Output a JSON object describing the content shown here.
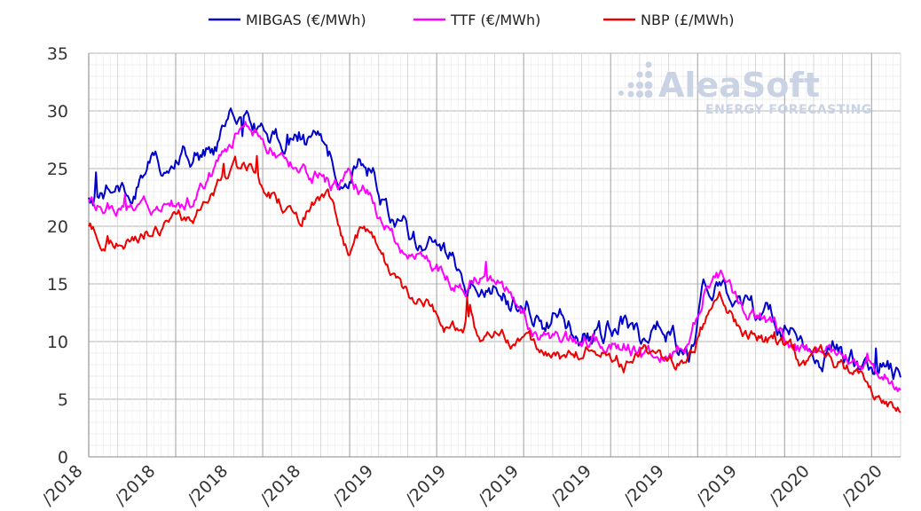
{
  "chart_data": {
    "type": "line",
    "ylim": [
      0,
      35
    ],
    "yticks": [
      "0",
      "5",
      "10",
      "15",
      "20",
      "25",
      "30",
      "35"
    ],
    "xticks": [
      "/2018",
      "/2018",
      "/2018",
      "/2018",
      "/2019",
      "/2019",
      "/2019",
      "/2019",
      "/2019",
      "/2019",
      "/2020",
      "/2020"
    ],
    "x_range": [
      "2018-01-01",
      "2020-04-15"
    ],
    "legend": "top",
    "grid": true,
    "series": [
      {
        "name": "MIBGAS (€/MWh)",
        "color": "#0000cc",
        "anchors": [
          [
            0,
            22.0
          ],
          [
            0.04,
            23.5
          ],
          [
            0.08,
            25.2
          ],
          [
            0.12,
            25.8
          ],
          [
            0.16,
            27.2
          ],
          [
            0.18,
            29.5
          ],
          [
            0.2,
            29.2
          ],
          [
            0.22,
            28.0
          ],
          [
            0.24,
            27.0
          ],
          [
            0.26,
            27.8
          ],
          [
            0.28,
            26.5
          ],
          [
            0.3,
            25.5
          ],
          [
            0.32,
            24.8
          ],
          [
            0.34,
            26.5
          ],
          [
            0.35,
            25.0
          ],
          [
            0.36,
            22.5
          ],
          [
            0.38,
            20.5
          ],
          [
            0.4,
            18.8
          ],
          [
            0.42,
            18.0
          ],
          [
            0.44,
            17.8
          ],
          [
            0.46,
            15.5
          ],
          [
            0.48,
            14.5
          ],
          [
            0.5,
            14.6
          ],
          [
            0.52,
            13.2
          ],
          [
            0.54,
            13.5
          ],
          [
            0.56,
            12.0
          ],
          [
            0.58,
            12.6
          ],
          [
            0.6,
            10.2
          ],
          [
            0.62,
            9.8
          ],
          [
            0.64,
            11.5
          ],
          [
            0.66,
            12.0
          ],
          [
            0.68,
            10.5
          ],
          [
            0.7,
            11.5
          ],
          [
            0.72,
            10.5
          ],
          [
            0.74,
            8.8
          ],
          [
            0.76,
            14.8
          ],
          [
            0.78,
            15.5
          ],
          [
            0.8,
            13.0
          ],
          [
            0.82,
            12.2
          ],
          [
            0.84,
            11.8
          ],
          [
            0.86,
            10.8
          ],
          [
            0.88,
            9.2
          ],
          [
            0.9,
            9.0
          ],
          [
            0.92,
            9.4
          ],
          [
            0.94,
            8.5
          ],
          [
            0.96,
            8.2
          ],
          [
            0.98,
            8.2
          ],
          [
            1.0,
            7.0
          ]
        ],
        "noise": 0.7
      },
      {
        "name": "TTF (€/MWh)",
        "color": "#ff00ff",
        "anchors": [
          [
            0,
            21.8
          ],
          [
            0.04,
            21.6
          ],
          [
            0.08,
            21.5
          ],
          [
            0.12,
            22.0
          ],
          [
            0.14,
            23.0
          ],
          [
            0.16,
            25.5
          ],
          [
            0.18,
            28.0
          ],
          [
            0.2,
            28.8
          ],
          [
            0.22,
            27.0
          ],
          [
            0.24,
            26.5
          ],
          [
            0.26,
            25.0
          ],
          [
            0.28,
            24.5
          ],
          [
            0.3,
            23.5
          ],
          [
            0.32,
            24.0
          ],
          [
            0.34,
            23.0
          ],
          [
            0.35,
            22.5
          ],
          [
            0.36,
            20.5
          ],
          [
            0.38,
            19.0
          ],
          [
            0.4,
            17.0
          ],
          [
            0.42,
            16.5
          ],
          [
            0.44,
            15.5
          ],
          [
            0.46,
            14.5
          ],
          [
            0.48,
            15.5
          ],
          [
            0.5,
            14.5
          ],
          [
            0.52,
            14.0
          ],
          [
            0.54,
            12.0
          ],
          [
            0.56,
            10.0
          ],
          [
            0.58,
            10.5
          ],
          [
            0.6,
            9.8
          ],
          [
            0.62,
            10.2
          ],
          [
            0.64,
            9.5
          ],
          [
            0.66,
            9.8
          ],
          [
            0.68,
            9.5
          ],
          [
            0.7,
            8.8
          ],
          [
            0.72,
            9.2
          ],
          [
            0.74,
            9.8
          ],
          [
            0.76,
            15.0
          ],
          [
            0.78,
            16.0
          ],
          [
            0.8,
            13.2
          ],
          [
            0.82,
            12.5
          ],
          [
            0.84,
            11.5
          ],
          [
            0.86,
            10.5
          ],
          [
            0.88,
            9.3
          ],
          [
            0.9,
            9.0
          ],
          [
            0.92,
            9.0
          ],
          [
            0.94,
            8.4
          ],
          [
            0.96,
            7.6
          ],
          [
            0.98,
            7.0
          ],
          [
            1.0,
            6.0
          ]
        ],
        "noise": 0.5
      },
      {
        "name": "NBP (£/MWh)",
        "color": "#ee0000",
        "anchors": [
          [
            0,
            19.8
          ],
          [
            0.02,
            19.0
          ],
          [
            0.04,
            18.2
          ],
          [
            0.06,
            19.5
          ],
          [
            0.08,
            19.8
          ],
          [
            0.12,
            20.5
          ],
          [
            0.14,
            22.0
          ],
          [
            0.16,
            24.0
          ],
          [
            0.18,
            25.5
          ],
          [
            0.2,
            25.0
          ],
          [
            0.22,
            23.0
          ],
          [
            0.24,
            22.0
          ],
          [
            0.26,
            21.0
          ],
          [
            0.28,
            22.5
          ],
          [
            0.3,
            22.0
          ],
          [
            0.31,
            19.0
          ],
          [
            0.32,
            17.5
          ],
          [
            0.34,
            20.0
          ],
          [
            0.35,
            19.5
          ],
          [
            0.36,
            17.5
          ],
          [
            0.38,
            15.0
          ],
          [
            0.4,
            14.0
          ],
          [
            0.42,
            13.5
          ],
          [
            0.44,
            11.5
          ],
          [
            0.46,
            10.5
          ],
          [
            0.47,
            13.5
          ],
          [
            0.48,
            10.0
          ],
          [
            0.5,
            11.0
          ],
          [
            0.52,
            9.8
          ],
          [
            0.54,
            9.5
          ],
          [
            0.56,
            9.0
          ],
          [
            0.58,
            8.5
          ],
          [
            0.6,
            9.0
          ],
          [
            0.62,
            9.2
          ],
          [
            0.64,
            9.0
          ],
          [
            0.66,
            8.0
          ],
          [
            0.68,
            9.5
          ],
          [
            0.7,
            9.0
          ],
          [
            0.72,
            8.5
          ],
          [
            0.74,
            8.5
          ],
          [
            0.76,
            12.0
          ],
          [
            0.78,
            13.5
          ],
          [
            0.8,
            11.0
          ],
          [
            0.82,
            10.5
          ],
          [
            0.84,
            10.0
          ],
          [
            0.86,
            9.5
          ],
          [
            0.88,
            8.0
          ],
          [
            0.9,
            8.5
          ],
          [
            0.92,
            8.2
          ],
          [
            0.94,
            7.5
          ],
          [
            0.96,
            6.0
          ],
          [
            0.98,
            4.5
          ],
          [
            1.0,
            3.5
          ]
        ],
        "noise": 0.45
      }
    ]
  },
  "watermark": {
    "brand": "AleaSoft",
    "tagline": "ENERGY FORECASTING"
  }
}
